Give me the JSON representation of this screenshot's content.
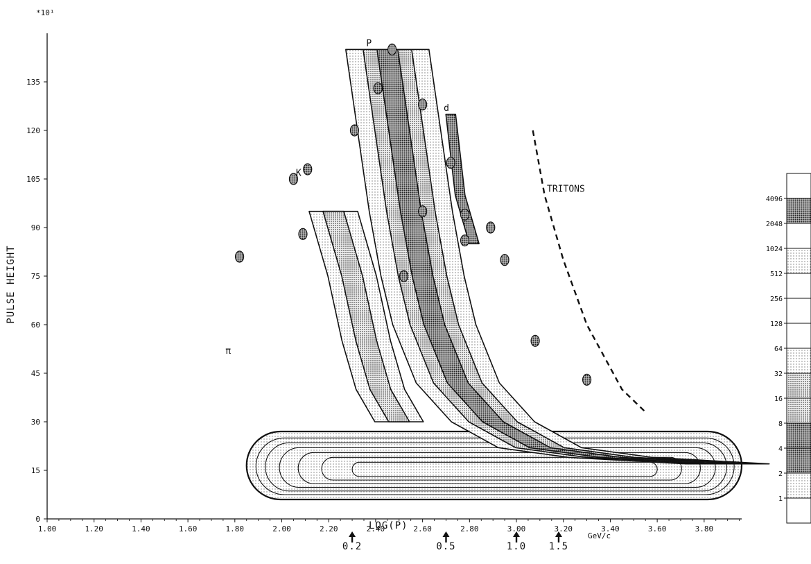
{
  "chart_data": {
    "type": "heatmap",
    "title": "",
    "xlabel": "LOG(P)",
    "ylabel": "PULSE HEIGHT",
    "y_multiplier": "*10¹",
    "xlim": [
      1.0,
      3.96
    ],
    "ylim": [
      0,
      150
    ],
    "x_ticks": [
      "1.00",
      "1.20",
      "1.40",
      "1.60",
      "1.80",
      "2.00",
      "2.20",
      "2.40",
      "2.60",
      "2.80",
      "3.00",
      "3.20",
      "3.40",
      "3.60",
      "3.80"
    ],
    "y_ticks": [
      "0",
      "15",
      "30",
      "45",
      "60",
      "75",
      "90",
      "105",
      "120",
      "135"
    ],
    "momentum_markers": [
      {
        "log_p": 2.3,
        "label": "0.2"
      },
      {
        "log_p": 2.7,
        "label": "0.5"
      },
      {
        "log_p": 3.0,
        "label": "1.0"
      },
      {
        "log_p": 3.18,
        "label": "1.5"
      }
    ],
    "momentum_unit": "GeV/c",
    "annotations": [
      {
        "text": "P",
        "x": 2.36,
        "y": 146
      },
      {
        "text": "K",
        "x": 2.06,
        "y": 106
      },
      {
        "text": "π",
        "x": 1.76,
        "y": 51
      },
      {
        "text": "d",
        "x": 2.69,
        "y": 126
      },
      {
        "text": "TRITONS",
        "x": 3.13,
        "y": 101
      }
    ],
    "legend_position": "right",
    "legend_levels": [
      "4096",
      "2048",
      "1024",
      "512",
      "256",
      "128",
      "64",
      "32",
      "16",
      "8",
      "4",
      "2",
      "1"
    ],
    "bands": {
      "pion_core": {
        "x_range": [
          1.85,
          3.96
        ],
        "y_center": 15
      },
      "proton_ridge": [
        [
          2.45,
          145
        ],
        [
          2.5,
          120
        ],
        [
          2.55,
          95
        ],
        [
          2.6,
          75
        ],
        [
          2.65,
          60
        ],
        [
          2.75,
          42
        ],
        [
          2.9,
          30
        ],
        [
          3.1,
          22
        ],
        [
          3.4,
          19
        ],
        [
          3.9,
          17
        ]
      ],
      "kaon_ridge": [
        [
          2.22,
          95
        ],
        [
          2.3,
          75
        ],
        [
          2.36,
          55
        ],
        [
          2.42,
          40
        ],
        [
          2.5,
          30
        ]
      ],
      "deuteron_band": [
        [
          2.72,
          125
        ],
        [
          2.76,
          100
        ],
        [
          2.82,
          85
        ]
      ],
      "triton_band": [
        [
          3.07,
          120
        ],
        [
          3.12,
          100
        ],
        [
          3.2,
          80
        ],
        [
          3.3,
          60
        ],
        [
          3.45,
          40
        ],
        [
          3.55,
          33
        ]
      ]
    },
    "colors": {
      "ink": "#111111",
      "shade_dark": "#6a6a6a",
      "shade_mid": "#9a9a9a",
      "shade_light": "#cfcfcf",
      "background": "#ffffff"
    }
  }
}
